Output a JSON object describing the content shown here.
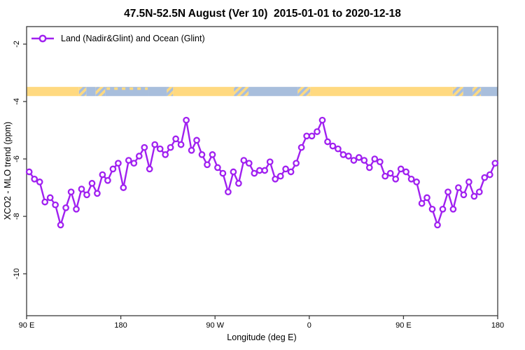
{
  "title": "47.5N-52.5N August (Ver 10)  2015-01-01 to 2020-12-18",
  "legend": {
    "label": "Land (Nadir&Glint) and Ocean (Glint)"
  },
  "axes": {
    "x": {
      "label": "Longitude (deg E)",
      "ticks": [
        {
          "deg": 90,
          "label": "90 E"
        },
        {
          "deg": 180,
          "label": "180"
        },
        {
          "deg": 270,
          "label": "90 W"
        },
        {
          "deg": 360,
          "label": "0"
        },
        {
          "deg": 450,
          "label": "90 E"
        },
        {
          "deg": 540,
          "label": "180"
        }
      ]
    },
    "y": {
      "label": "XCO2 - MLO trend (ppm)",
      "ticks": [
        {
          "ppm": -2,
          "label": "-2"
        },
        {
          "ppm": -4,
          "label": "-4"
        },
        {
          "ppm": -6,
          "label": "-6"
        },
        {
          "ppm": -8,
          "label": "-8"
        },
        {
          "ppm": -10,
          "label": "-10"
        }
      ]
    }
  },
  "colors": {
    "accent": "#A020F0",
    "marker_fill": "#ffffff",
    "land": "#FFD980",
    "ocean": "#A8BEDC",
    "frame": "#3a3a3a",
    "text": "#000000"
  },
  "chart_data": {
    "type": "line",
    "title": "47.5N-52.5N August (Ver 10)  2015-01-01 to 2020-12-18",
    "xlabel": "Longitude (deg E)",
    "ylabel": "XCO2 - MLO trend (ppm)",
    "xlim": [
      90,
      540
    ],
    "ylim": [
      -11.46,
      -1.39
    ],
    "grid": false,
    "legend_position": "top-left-inside",
    "x_start_deg_east": 92.5,
    "x_step_deg": 5,
    "series": [
      {
        "name": "Land (Nadir&Glint) and Ocean (Glint)",
        "marker": "open-circle",
        "color": "#A020F0",
        "values": [
          -6.45,
          -6.7,
          -6.8,
          -7.5,
          -7.35,
          -7.6,
          -8.3,
          -7.7,
          -7.15,
          -7.75,
          -7.05,
          -7.25,
          -6.85,
          -7.2,
          -6.55,
          -6.75,
          -6.35,
          -6.15,
          -7.0,
          -6.05,
          -6.15,
          -5.9,
          -5.6,
          -6.35,
          -5.5,
          -5.65,
          -5.85,
          -5.6,
          -5.3,
          -5.5,
          -4.65,
          -5.7,
          -5.35,
          -5.85,
          -6.2,
          -5.85,
          -6.3,
          -6.5,
          -7.15,
          -6.45,
          -6.85,
          -6.05,
          -6.15,
          -6.5,
          -6.4,
          -6.4,
          -6.1,
          -6.7,
          -6.6,
          -6.35,
          -6.45,
          -6.15,
          -5.6,
          -5.2,
          -5.2,
          -5.05,
          -4.65,
          -5.4,
          -5.55,
          -5.65,
          -5.85,
          -5.9,
          -6.05,
          -5.95,
          -6.05,
          -6.3,
          -6.0,
          -6.1,
          -6.6,
          -6.5,
          -6.7,
          -6.35,
          -6.45,
          -6.7,
          -6.8,
          -7.55,
          -7.35,
          -7.75,
          -8.3,
          -7.75,
          -7.15,
          -7.75,
          -7.0,
          -7.25,
          -6.8,
          -7.3,
          -7.15,
          -6.65,
          -6.55,
          -6.15
        ]
      }
    ],
    "surface_band": {
      "description": "land (yellow) vs ocean (blue) strip along longitude",
      "top_ppm": -3.49,
      "bottom_ppm": -3.81,
      "segments": [
        {
          "from": 90,
          "to": 140,
          "type": "land"
        },
        {
          "from": 140,
          "to": 147,
          "type": "mixed"
        },
        {
          "from": 147,
          "to": 156,
          "type": "ocean"
        },
        {
          "from": 156,
          "to": 165,
          "type": "mixed"
        },
        {
          "from": 165,
          "to": 207,
          "type": "ocean_islands"
        },
        {
          "from": 207,
          "to": 224,
          "type": "ocean"
        },
        {
          "from": 224,
          "to": 230,
          "type": "mixed"
        },
        {
          "from": 230,
          "to": 288,
          "type": "land"
        },
        {
          "from": 288,
          "to": 302,
          "type": "mixed"
        },
        {
          "from": 302,
          "to": 349,
          "type": "ocean"
        },
        {
          "from": 349,
          "to": 361,
          "type": "mixed"
        },
        {
          "from": 361,
          "to": 497,
          "type": "land"
        },
        {
          "from": 497,
          "to": 507,
          "type": "mixed"
        },
        {
          "from": 507,
          "to": 516,
          "type": "ocean"
        },
        {
          "from": 516,
          "to": 524,
          "type": "mixed"
        },
        {
          "from": 524,
          "to": 540,
          "type": "ocean"
        }
      ]
    }
  }
}
